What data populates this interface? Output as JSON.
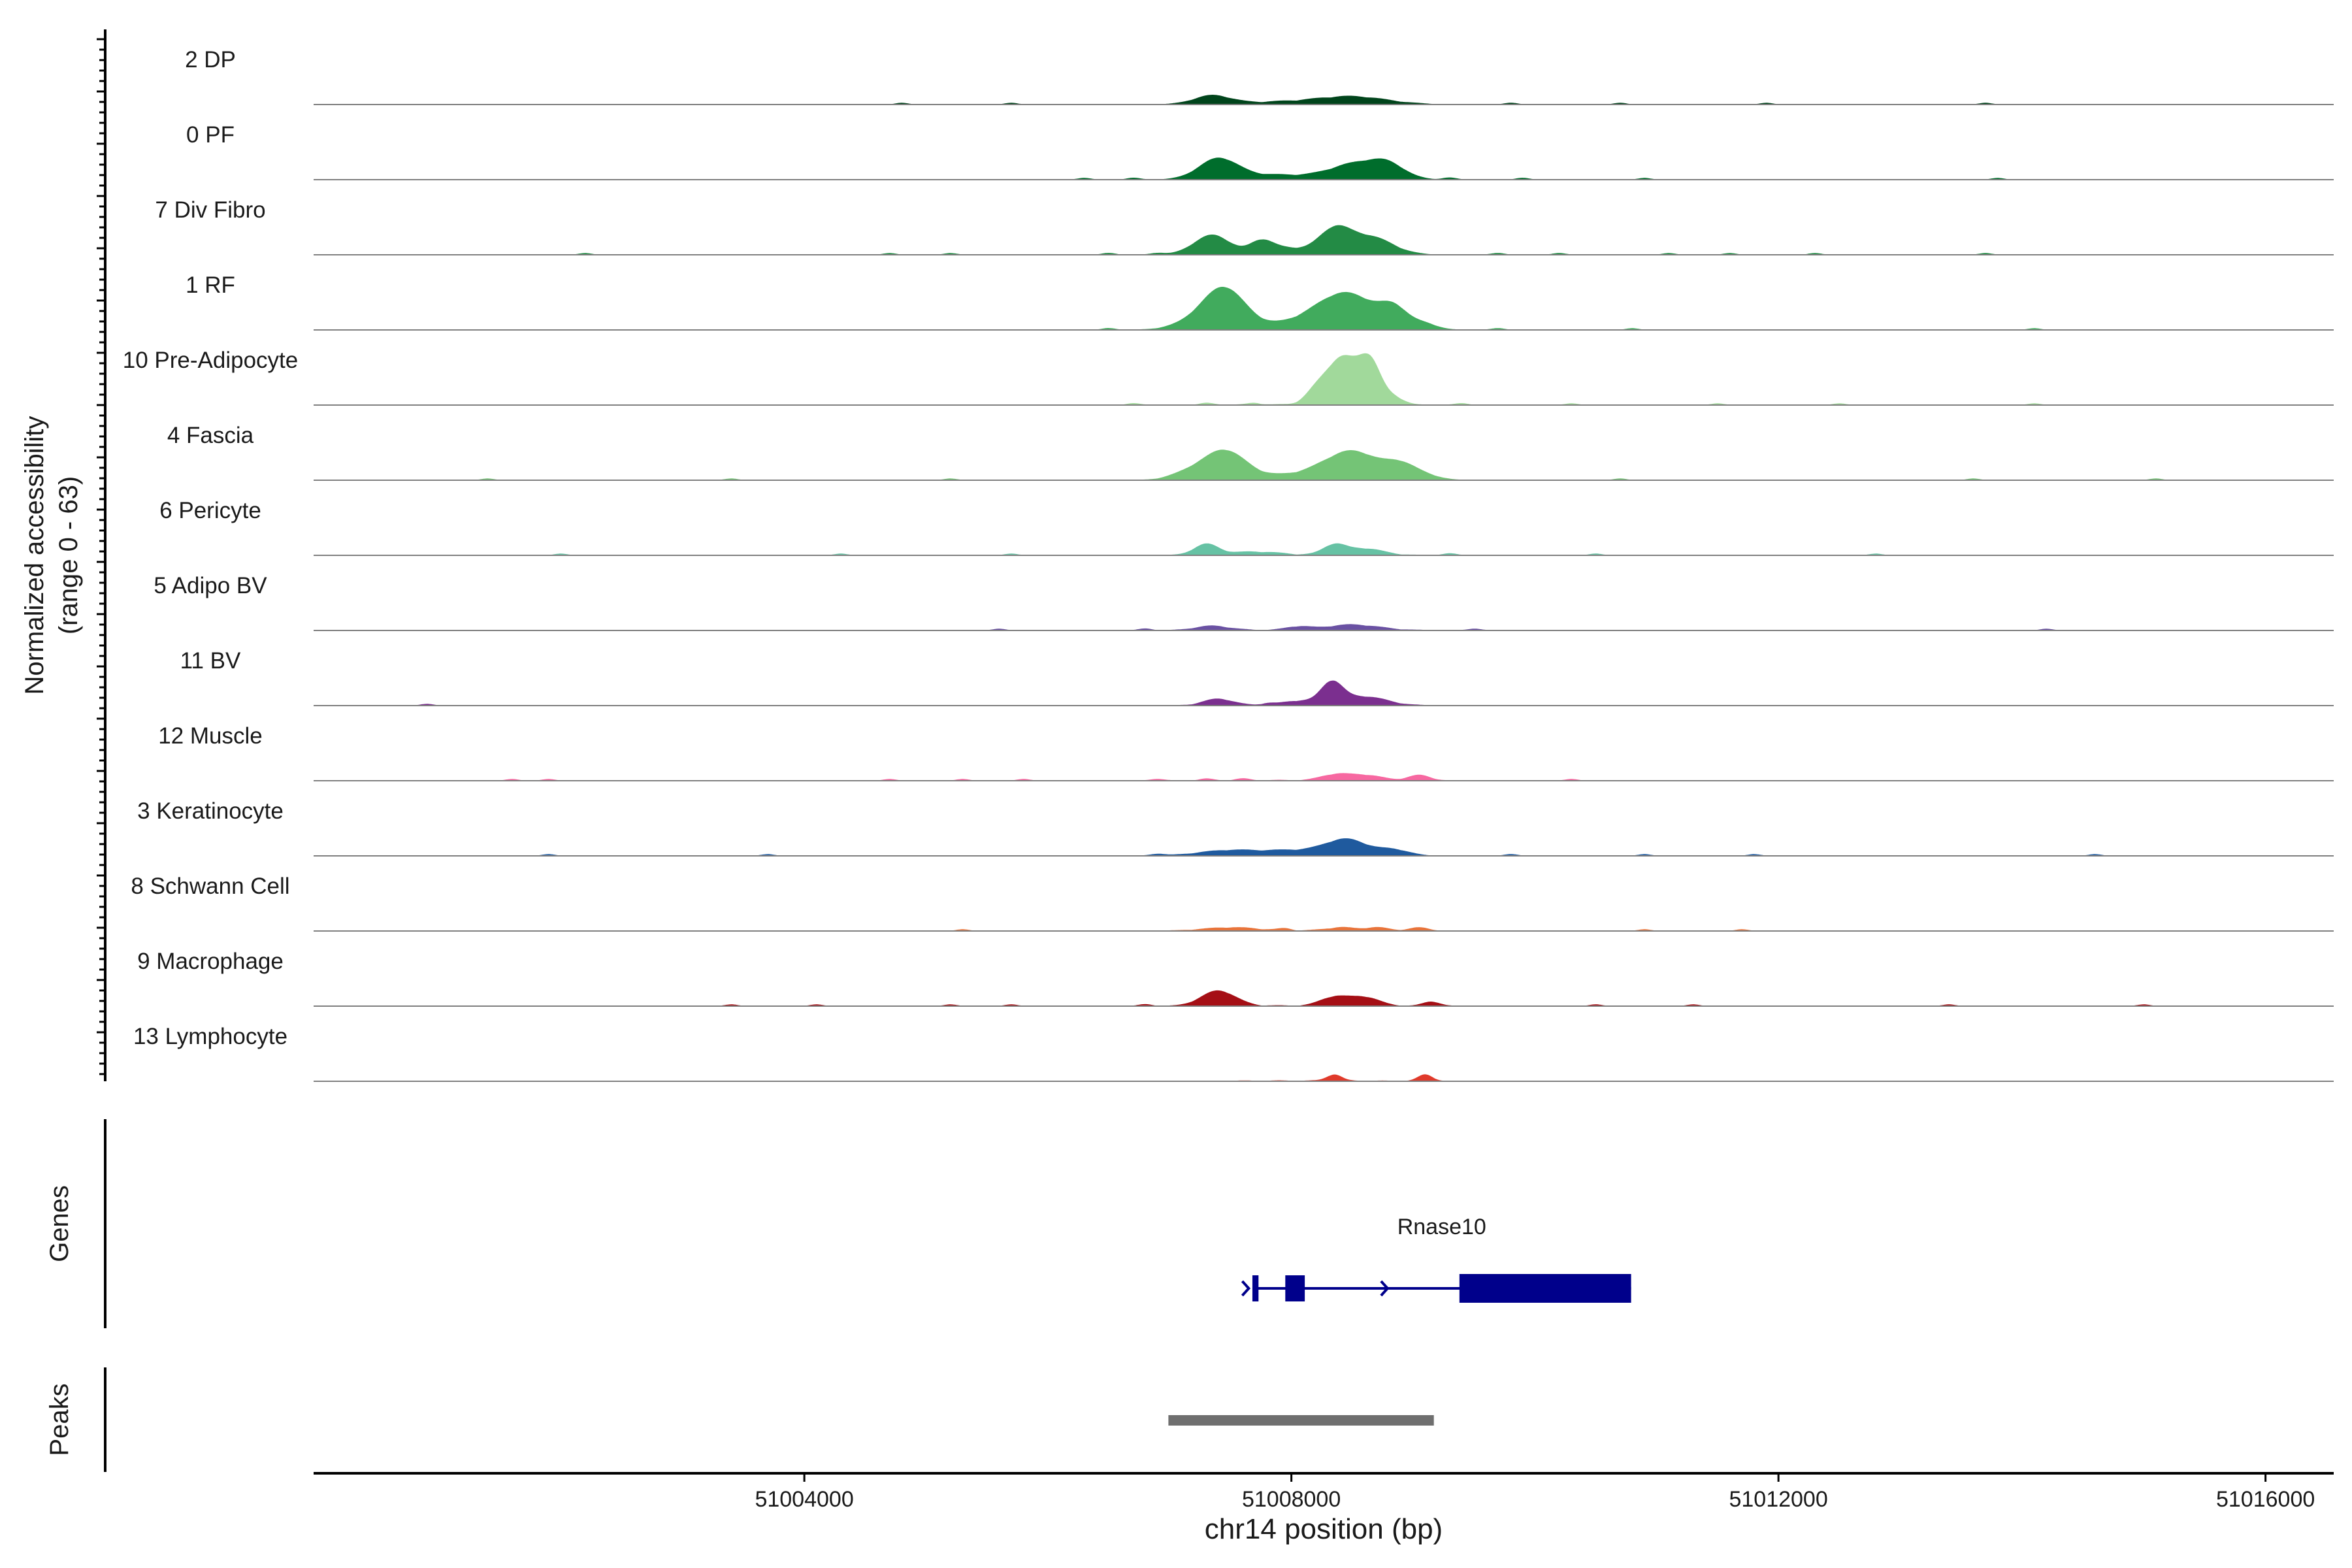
{
  "chart_data": {
    "type": "area",
    "title": "",
    "xlabel": "chr14 position (bp)",
    "ylabel_line1": "Normalized accessibility",
    "ylabel_line2": "(range 0 - 63)",
    "yrange": [
      0,
      63
    ],
    "xlim": [
      50999970,
      51016560
    ],
    "x_ticks": [
      51004000,
      51008000,
      51012000,
      51016000
    ],
    "x_tick_labels": [
      "51004000",
      "51008000",
      "51012000",
      "51016000"
    ],
    "tracks": [
      {
        "name": "2 DP",
        "color": "#00441b",
        "peaks": [
          [
            51007350,
            150,
            8
          ],
          [
            51008500,
            280,
            7
          ],
          [
            51007900,
            300,
            2
          ]
        ],
        "bumps": [
          51004800,
          51005700,
          51009800,
          51010700,
          51011900,
          51013700
        ]
      },
      {
        "name": "0 PF",
        "color": "#006d2c",
        "peaks": [
          [
            51007400,
            160,
            19
          ],
          [
            51008550,
            230,
            15
          ],
          [
            51008800,
            130,
            9
          ],
          [
            51007850,
            250,
            4
          ]
        ],
        "bumps": [
          51006300,
          51006700,
          51009300,
          51009900,
          51010900,
          51013800
        ]
      },
      {
        "name": "7 Div Fibro",
        "color": "#238b45",
        "peaks": [
          [
            51007350,
            150,
            18
          ],
          [
            51008350,
            130,
            22
          ],
          [
            51008650,
            180,
            16
          ],
          [
            51007750,
            90,
            11
          ],
          [
            51007950,
            150,
            6
          ]
        ],
        "bumps": [
          51002200,
          51004700,
          51005200,
          51006500,
          51006900,
          51009700,
          51010200,
          51011100,
          51011600,
          51012300,
          51013700
        ]
      },
      {
        "name": "1 RF",
        "color": "#41ab5d",
        "peaks": [
          [
            51007450,
            170,
            36
          ],
          [
            51008450,
            250,
            33
          ],
          [
            51008850,
            110,
            15
          ],
          [
            51007200,
            180,
            6
          ],
          [
            51009100,
            100,
            5
          ],
          [
            51007950,
            300,
            4
          ]
        ],
        "bumps": [
          51006500,
          51009700,
          51010800,
          51014100
        ]
      },
      {
        "name": "10 Pre-Adipocyte",
        "color": "#a1d99b",
        "peaks": [
          [
            51008420,
            130,
            43
          ],
          [
            51008650,
            90,
            36
          ],
          [
            51008200,
            90,
            10
          ],
          [
            51008850,
            80,
            6
          ]
        ],
        "bumps": [
          51006700,
          51007300,
          51007700,
          51009400,
          51010300,
          51011500,
          51012500,
          51014100
        ]
      },
      {
        "name": "4 Fascia",
        "color": "#74c476",
        "peaks": [
          [
            51007450,
            170,
            26
          ],
          [
            51008500,
            230,
            26
          ],
          [
            51008900,
            120,
            11
          ],
          [
            51007150,
            150,
            6
          ],
          [
            51009100,
            120,
            4
          ],
          [
            51007950,
            300,
            4
          ]
        ],
        "bumps": [
          51001400,
          51003400,
          51005200,
          51010700,
          51013600,
          51015100
        ]
      },
      {
        "name": "6 Pericyte",
        "color": "#66c2a4",
        "peaks": [
          [
            51007300,
            100,
            10
          ],
          [
            51008350,
            90,
            9
          ],
          [
            51008600,
            150,
            6
          ],
          [
            51007700,
            200,
            3
          ]
        ],
        "bumps": [
          51002000,
          51004300,
          51005700,
          51009300,
          51010500,
          51012800
        ]
      },
      {
        "name": "5 Adipo BV",
        "color": "#6a51a3",
        "peaks": [
          [
            51008500,
            220,
            5
          ],
          [
            51007350,
            140,
            4
          ],
          [
            51008050,
            90,
            3
          ]
        ],
        "bumps": [
          51005600,
          51006800,
          51009500,
          51014200
        ]
      },
      {
        "name": "11 BV",
        "color": "#7b2f8f",
        "peaks": [
          [
            51008330,
            90,
            20
          ],
          [
            51008600,
            180,
            8
          ],
          [
            51007400,
            120,
            6
          ],
          [
            51008050,
            120,
            4
          ]
        ],
        "bumps": [
          51000900,
          51007800
        ]
      },
      {
        "name": "12 Muscle",
        "color": "#f768a1",
        "peaks": [
          [
            51008350,
            110,
            5
          ],
          [
            51008600,
            140,
            5
          ],
          [
            51009050,
            90,
            5
          ]
        ],
        "bumps": [
          51001600,
          51001900,
          51004700,
          51005300,
          51005800,
          51006900,
          51007300,
          51007600,
          51010300
        ]
      },
      {
        "name": "3 Keratinocyte",
        "color": "#1f5a9e",
        "peaks": [
          [
            51008450,
            180,
            15
          ],
          [
            51007500,
            250,
            5
          ],
          [
            51008000,
            200,
            4
          ],
          [
            51008850,
            120,
            5
          ]
        ],
        "bumps": [
          51001900,
          51003700,
          51006900,
          51009800,
          51010900,
          51011800,
          51014600
        ]
      },
      {
        "name": "8 Schwann Cell",
        "color": "#e8743b",
        "peaks": [
          [
            51007500,
            220,
            3
          ],
          [
            51008400,
            110,
            3
          ],
          [
            51008700,
            100,
            3
          ],
          [
            51009050,
            80,
            3
          ]
        ],
        "bumps": [
          51005300,
          51007950,
          51010900,
          51011700
        ]
      },
      {
        "name": "9 Macrophage",
        "color": "#a50f15",
        "peaks": [
          [
            51007400,
            140,
            14
          ],
          [
            51008350,
            110,
            8
          ],
          [
            51008600,
            120,
            8
          ],
          [
            51009150,
            70,
            4
          ]
        ],
        "bumps": [
          51003400,
          51004100,
          51005200,
          51005700,
          51006800,
          51010500,
          51011300,
          51013400,
          51015000
        ]
      },
      {
        "name": "13 Lymphocyte",
        "color": "#e03a2b",
        "peaks": [
          [
            51008350,
            60,
            6
          ],
          [
            51009100,
            60,
            6
          ]
        ],
        "bumps": []
      }
    ],
    "genes_label": "Genes",
    "gene": {
      "name": "Rnase10",
      "color": "#00008b",
      "start": 51007680,
      "end": 51010790,
      "exons": [
        [
          51007680,
          51007730
        ],
        [
          51007950,
          51008110
        ],
        [
          51009380,
          51010790
        ]
      ],
      "strand_arrows": [
        51007650,
        51008790
      ]
    },
    "peaks_label": "Peaks",
    "peak_regions": [
      [
        51006990,
        51009170
      ]
    ],
    "peak_color": "#6f6f6f",
    "grid": false,
    "legend": "none"
  }
}
